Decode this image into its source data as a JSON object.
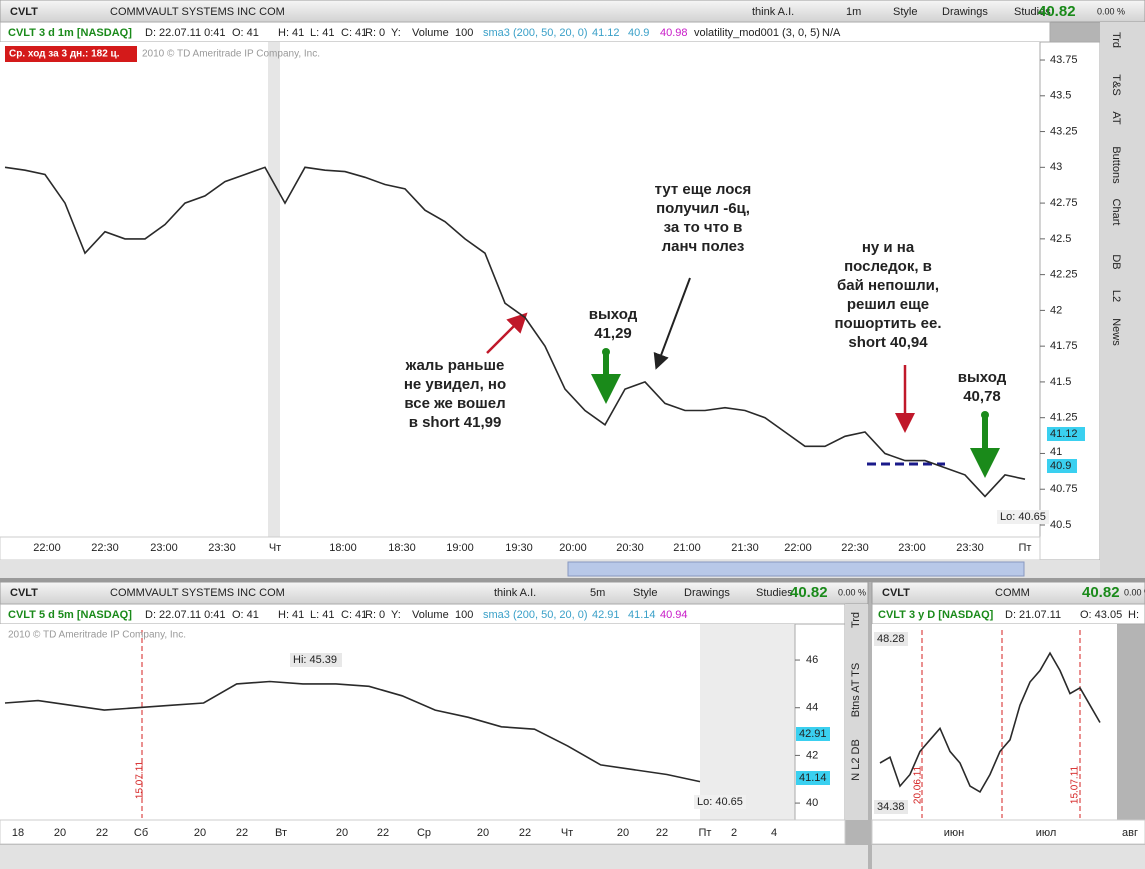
{
  "top_panel": {
    "toolbar": {
      "symbol": "CVLT",
      "company": "COMMVAULT SYSTEMS INC COM",
      "think_ai": "think A.I.",
      "interval": "1m",
      "style": "Style",
      "drawings": "Drawings",
      "studies": "Studies",
      "last": "40.82",
      "change": "0.00 %"
    },
    "info": [
      "CVLT 3 d 1m [NASDAQ]",
      "D: 22.07.11 0:41",
      "O: 41",
      "H: 41",
      "L: 41",
      "C: 41",
      "R: 0",
      "Y:",
      "Volume",
      "100",
      "sma3 (200, 50, 20, 0)",
      "41.12",
      "40.9",
      "40.98",
      "volatility_mod001 (3, 0, 5)",
      "N/A"
    ],
    "avg_range_label": "Ср. ход за 3 дн.: 182 ц.",
    "watermark": "2010 © TD Ameritrade IP Company, Inc.",
    "chart": {
      "type": "line",
      "color": "#2a2a2a",
      "values": [
        43.0,
        42.98,
        42.95,
        42.75,
        42.4,
        42.55,
        42.5,
        42.5,
        42.6,
        42.75,
        42.8,
        42.9,
        42.95,
        43.0,
        42.75,
        43.0,
        42.98,
        42.97,
        42.93,
        42.88,
        42.85,
        42.7,
        42.62,
        42.5,
        42.4,
        42.05,
        41.95,
        41.75,
        41.45,
        41.3,
        41.2,
        41.45,
        41.5,
        41.35,
        41.3,
        41.3,
        41.32,
        41.3,
        41.25,
        41.15,
        41.05,
        41.05,
        41.12,
        41.15,
        41.0,
        40.95,
        40.95,
        40.9,
        40.85,
        40.7,
        40.85,
        40.82
      ],
      "ylim": [
        40.43,
        43.855
      ],
      "yticks": [
        43.75,
        43.5,
        43.25,
        43,
        42.75,
        42.5,
        42.25,
        42,
        41.75,
        41.5,
        41.25,
        41,
        40.75,
        40.5
      ]
    },
    "x_axis_labels": [
      "22:00",
      "22:30",
      "23:00",
      "23:30",
      "Чт",
      "18:00",
      "18:30",
      "19:00",
      "19:30",
      "20:00",
      "20:30",
      "21:00",
      "21:30",
      "22:00",
      "22:30",
      "23:00",
      "23:30",
      "Пт"
    ],
    "price_tags": [
      "41.12",
      "41",
      "40.9"
    ],
    "low_label": "Lo: 40.65",
    "annotations": [
      {
        "lines": [
          "жаль раньше",
          "не увидел, но",
          "все же вошел",
          "в short 41,99"
        ]
      },
      {
        "lines": [
          "выход",
          "41,29"
        ]
      },
      {
        "lines": [
          "тут еще лося",
          "получил -6ц,",
          "за то что в",
          "ланч полез"
        ]
      },
      {
        "lines": [
          "ну и на",
          "последок, в",
          "бай непошли,",
          "решил еще",
          "пошортить ее.",
          "short 40,94"
        ]
      },
      {
        "lines": [
          "выход",
          "40,78"
        ]
      }
    ],
    "side_tabs": [
      "Trd",
      "T&S",
      "AT",
      "Buttons",
      "Chart",
      "DB",
      "L2",
      "News"
    ]
  },
  "bottom_left_panel": {
    "toolbar": {
      "symbol": "CVLT",
      "company": "COMMVAULT SYSTEMS INC COM",
      "think_ai": "think A.I.",
      "interval": "5m",
      "style": "Style",
      "drawings": "Drawings",
      "studies": "Studies",
      "last": "40.82",
      "change": "0.00 %"
    },
    "info": [
      "CVLT 5 d 5m [NASDAQ]",
      "D: 22.07.11 0:41",
      "O: 41",
      "H: 41",
      "L: 41",
      "C: 41",
      "R: 0",
      "Y:",
      "Volume",
      "100",
      "sma3 (200, 50, 20, 0)",
      "42.91",
      "41.14",
      "40.94"
    ],
    "watermark": "2010 © TD Ameritrade IP Company, Inc.",
    "chart": {
      "type": "line",
      "color": "#2a2a2a",
      "values": [
        44.2,
        44.3,
        44.1,
        43.9,
        44.0,
        44.1,
        44.2,
        45.0,
        45.1,
        45.0,
        45.0,
        44.9,
        44.5,
        43.9,
        43.6,
        43.2,
        43.1,
        42.4,
        41.6,
        41.4,
        41.2,
        40.9
      ],
      "ylim": [
        39.5,
        47.47
      ],
      "yticks": [
        46,
        44,
        42,
        40
      ]
    },
    "hi_label": "Hi: 45.39",
    "low_label": "Lo: 40.65",
    "price_tags": [
      "42.91",
      "41.14"
    ],
    "date_marker": "15.07.11",
    "x_axis_labels": [
      "18",
      "20",
      "22",
      "Сб",
      "20",
      "22",
      "Вт",
      "20",
      "22",
      "Ср",
      "20",
      "22",
      "Чт",
      "20",
      "22",
      "Пт",
      "2",
      "4"
    ],
    "side_tabs": [
      "Trd",
      "Btns AT TS",
      "N L2 DB"
    ]
  },
  "bottom_right_panel": {
    "toolbar": {
      "symbol": "CVLT",
      "company": "COMM",
      "last": "40.82",
      "change": "0.00 %"
    },
    "info": [
      "CVLT 3 y D [NASDAQ]",
      "D: 21.07.11",
      "O: 43.05",
      "H:"
    ],
    "chart": {
      "type": "line",
      "color": "#2a2a2a",
      "values": [
        38,
        38.5,
        36,
        37,
        39,
        40,
        41,
        39,
        38,
        36,
        35.5,
        37,
        39,
        40,
        43,
        45,
        46,
        47.5,
        46,
        44,
        44.5,
        43,
        41.5
      ],
      "ylim": [
        33.5,
        49.5
      ]
    },
    "hi_label": "48.28",
    "low_label": "34.38",
    "date_markers": [
      "20.06.11",
      "15.07.11"
    ],
    "x_axis_labels": [
      "июн",
      "июл",
      "авг"
    ]
  }
}
